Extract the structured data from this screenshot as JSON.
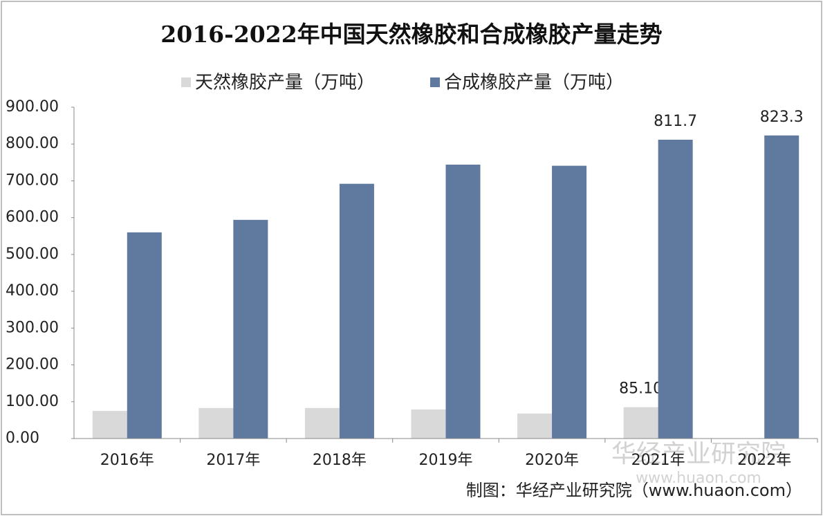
{
  "chart_data": {
    "type": "bar",
    "title": "2016-2022年中国天然橡胶和合成橡胶产量走势",
    "categories": [
      "2016年",
      "2017年",
      "2018年",
      "2019年",
      "2020年",
      "2021年",
      "2022年"
    ],
    "series": [
      {
        "name": "天然橡胶产量（万吨）",
        "color": "#d9d9d9",
        "values": [
          75,
          83,
          83,
          79,
          68,
          85.1,
          null
        ],
        "value_labels": [
          null,
          null,
          null,
          null,
          null,
          "85.10",
          null
        ]
      },
      {
        "name": "合成橡胶产量（万吨）",
        "color": "#60799f",
        "values": [
          560,
          594,
          692,
          744,
          741,
          811.7,
          823.3
        ],
        "value_labels": [
          null,
          null,
          null,
          null,
          null,
          "811.7",
          "823.3"
        ]
      }
    ],
    "ylim": [
      0,
      900
    ],
    "yticks": [
      {
        "value": 0,
        "label": "0.00"
      },
      {
        "value": 100,
        "label": "100.00"
      },
      {
        "value": 200,
        "label": "200.00"
      },
      {
        "value": 300,
        "label": "300.00"
      },
      {
        "value": 400,
        "label": "400.00"
      },
      {
        "value": 500,
        "label": "500.00"
      },
      {
        "value": 600,
        "label": "600.00"
      },
      {
        "value": 700,
        "label": "700.00"
      },
      {
        "value": 800,
        "label": "800.00"
      },
      {
        "value": 900,
        "label": "900.00"
      }
    ],
    "grid": false,
    "legend": "top",
    "source": "制图：华经产业研究院（www.huaon.com）",
    "watermark": [
      "华经产业研究院",
      "www.huaon.com"
    ]
  }
}
